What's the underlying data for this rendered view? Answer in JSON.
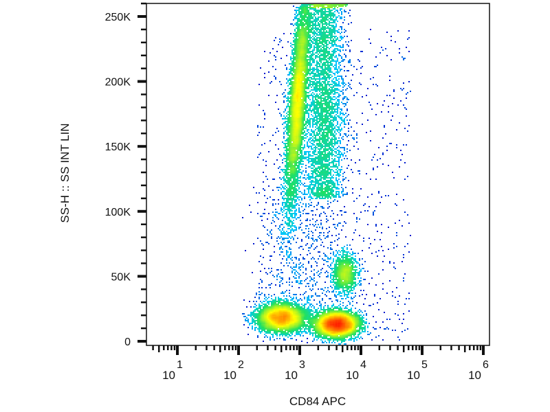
{
  "chart_data": {
    "type": "scatter",
    "style": "pseudocolor density dot plot",
    "xlabel": "CD84 APC",
    "ylabel": "SS-H :: SS INT LIN",
    "x_scale": "log",
    "xlim": [
      3.1,
      1260000
    ],
    "ylim": [
      -3200,
      260000
    ],
    "x_ticks": [
      {
        "value": 10,
        "base": "10",
        "exp": "1"
      },
      {
        "value": 100,
        "base": "10",
        "exp": "2"
      },
      {
        "value": 1000,
        "base": "10",
        "exp": "3"
      },
      {
        "value": 10000,
        "base": "10",
        "exp": "4"
      },
      {
        "value": 100000,
        "base": "10",
        "exp": "5"
      },
      {
        "value": 1000000,
        "base": "10",
        "exp": "6"
      }
    ],
    "y_ticks": [
      {
        "value": 0,
        "label": "0"
      },
      {
        "value": 50000,
        "label": "50K"
      },
      {
        "value": 100000,
        "label": "100K"
      },
      {
        "value": 150000,
        "label": "150K"
      },
      {
        "value": 200000,
        "label": "200K"
      },
      {
        "value": 250000,
        "label": "250K"
      }
    ],
    "grid": false,
    "colormap": [
      "#0000c8",
      "#00c8ff",
      "#20e060",
      "#ffff00",
      "#ff2000"
    ],
    "populations": [
      {
        "x_center": 1000,
        "y_center": 185000,
        "y_spread": 40000,
        "log_x_spread": 0.07,
        "events": 7000,
        "note": "high SS, CD84 dim streak"
      },
      {
        "x_center": 2500,
        "y_center": 190000,
        "y_spread": 40000,
        "log_x_spread": 0.16,
        "events": 4000
      },
      {
        "x_center": 500,
        "y_center": 18000,
        "y_spread": 5500,
        "log_x_spread": 0.2,
        "events": 4500
      },
      {
        "x_center": 4000,
        "y_center": 13000,
        "y_spread": 5000,
        "log_x_spread": 0.18,
        "events": 6000
      },
      {
        "x_center": 5500,
        "y_center": 52000,
        "y_spread": 8000,
        "log_x_spread": 0.1,
        "events": 1300
      },
      {
        "x_center": 3000,
        "y_center": 260000,
        "y_spread": 0,
        "log_x_spread": 0.15,
        "events": 500,
        "note": "saturated events at top edge"
      }
    ]
  }
}
